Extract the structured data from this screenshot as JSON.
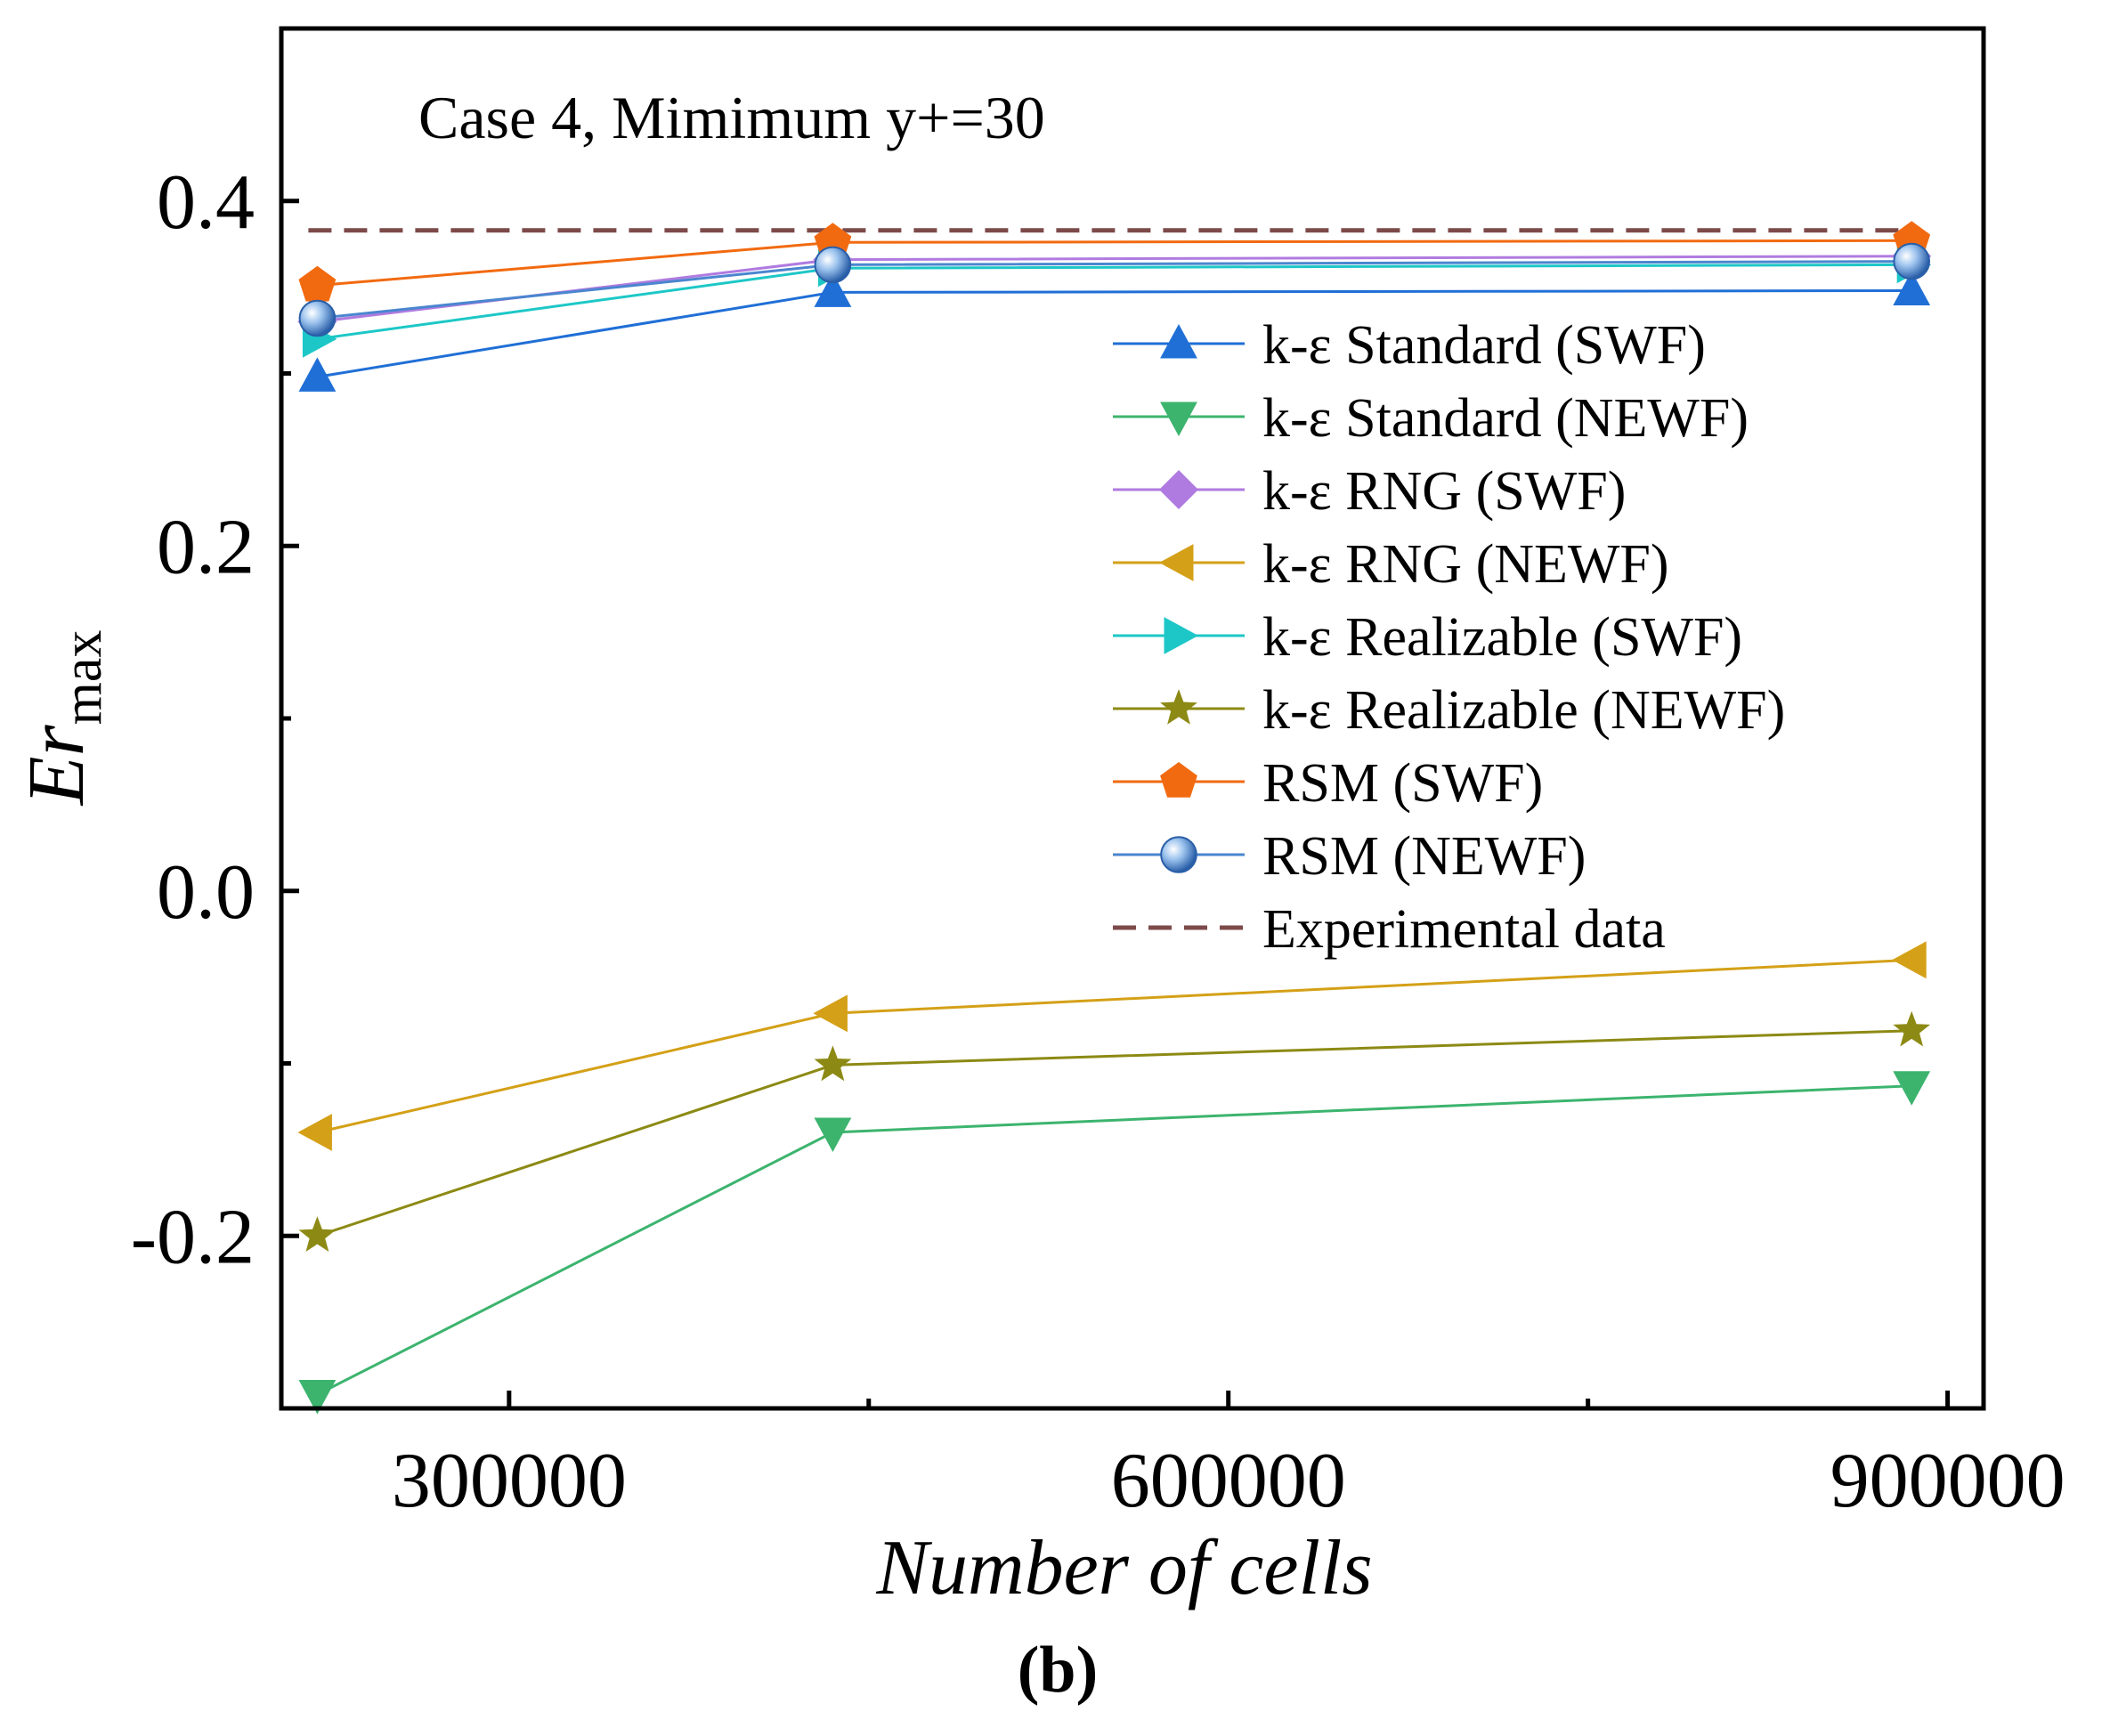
{
  "chart_data": {
    "type": "line",
    "annotation": "Case 4,  Mimimum y+=30",
    "xlabel": "Number of cells",
    "ylabel_main": "Er",
    "ylabel_sub": "max",
    "panel_label": "(b)",
    "xlim": [
      205000,
      915000
    ],
    "ylim": [
      -0.3,
      0.5
    ],
    "x_ticks": [
      {
        "value": 300000,
        "label": "300000"
      },
      {
        "value": 600000,
        "label": "600000"
      },
      {
        "value": 900000,
        "label": "900000"
      }
    ],
    "x_minor_ticks": [
      450000,
      750000
    ],
    "y_ticks": [
      {
        "value": -0.2,
        "label": "-0.2"
      },
      {
        "value": 0.0,
        "label": "0.0"
      },
      {
        "value": 0.2,
        "label": "0.2"
      },
      {
        "value": 0.4,
        "label": "0.4"
      }
    ],
    "y_minor_ticks": [
      -0.1,
      0.1,
      0.3
    ],
    "x": [
      220000,
      435000,
      885000
    ],
    "series": [
      {
        "name": "k-ε Standard (SWF)",
        "marker": "triangle-up",
        "color": "#1f6fd6",
        "values": [
          0.298,
          0.347,
          0.348
        ]
      },
      {
        "name": "k-ε Standard (NEWF)",
        "marker": "triangle-down",
        "color": "#3cb46e",
        "values": [
          -0.292,
          -0.14,
          -0.113
        ]
      },
      {
        "name": "k-ε RNG (SWF)",
        "marker": "diamond",
        "color": "#b07be0",
        "values": [
          0.33,
          0.366,
          0.368
        ]
      },
      {
        "name": "k-ε RNG (NEWF)",
        "marker": "triangle-left",
        "color": "#d4a017",
        "values": [
          -0.14,
          -0.071,
          -0.04
        ]
      },
      {
        "name": "k-ε Realizable (SWF)",
        "marker": "triangle-right",
        "color": "#1dc7c7",
        "values": [
          0.32,
          0.361,
          0.363
        ]
      },
      {
        "name": "k-ε Realizable (NEWF)",
        "marker": "star",
        "color": "#8c8a14",
        "values": [
          -0.2,
          -0.101,
          -0.081
        ]
      },
      {
        "name": "RSM (SWF)",
        "marker": "pentagon",
        "color": "#f26a10",
        "values": [
          0.351,
          0.376,
          0.377
        ]
      },
      {
        "name": "RSM (NEWF)",
        "marker": "sphere",
        "color": "#4a86cf",
        "values": [
          0.332,
          0.363,
          0.365
        ]
      }
    ],
    "experimental": {
      "name": "Experimental data",
      "value": 0.383,
      "color": "#7d4a4a"
    },
    "legend_position": "right-center"
  }
}
